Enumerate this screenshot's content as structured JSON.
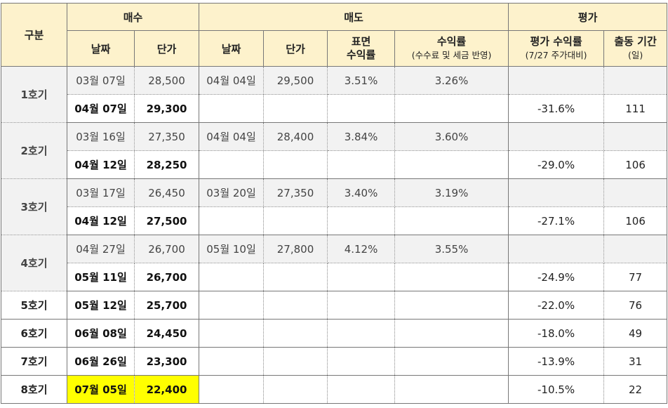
{
  "header": {
    "gubun": "구분",
    "buy": "매수",
    "sell": "매도",
    "eval": "평가",
    "buy_date": "날짜",
    "buy_price": "단가",
    "sell_date": "날짜",
    "sell_price": "단가",
    "surface_line1": "표면",
    "surface_line2": "수익률",
    "return_line1": "수익률",
    "return_line2": "(수수료 및 세금 반영)",
    "eval_return_line1": "평가 수익률",
    "eval_return_line2": "(7/27 주가대비)",
    "days_line1": "출동 기간",
    "days_line2": "(일)"
  },
  "groups": [
    {
      "label": "1호기",
      "rows": [
        {
          "buy_date": "03월 07일",
          "buy_price": "28,500",
          "sell_date": "04월 04일",
          "sell_price": "29,500",
          "surface": "3.51%",
          "net": "3.26%",
          "eval": "",
          "days": ""
        },
        {
          "buy_date": "04월 07일",
          "buy_price": "29,300",
          "sell_date": "",
          "sell_price": "",
          "surface": "",
          "net": "",
          "eval": "-31.6%",
          "days": "111"
        }
      ]
    },
    {
      "label": "2호기",
      "rows": [
        {
          "buy_date": "03월 16일",
          "buy_price": "27,350",
          "sell_date": "04월 04일",
          "sell_price": "28,400",
          "surface": "3.84%",
          "net": "3.60%",
          "eval": "",
          "days": ""
        },
        {
          "buy_date": "04월 12일",
          "buy_price": "28,250",
          "sell_date": "",
          "sell_price": "",
          "surface": "",
          "net": "",
          "eval": "-29.0%",
          "days": "106"
        }
      ]
    },
    {
      "label": "3호기",
      "rows": [
        {
          "buy_date": "03월 17일",
          "buy_price": "26,450",
          "sell_date": "03월 20일",
          "sell_price": "27,350",
          "surface": "3.40%",
          "net": "3.19%",
          "eval": "",
          "days": ""
        },
        {
          "buy_date": "04월 12일",
          "buy_price": "27,500",
          "sell_date": "",
          "sell_price": "",
          "surface": "",
          "net": "",
          "eval": "-27.1%",
          "days": "106"
        }
      ]
    },
    {
      "label": "4호기",
      "rows": [
        {
          "buy_date": "04월 27일",
          "buy_price": "26,700",
          "sell_date": "05월 10일",
          "sell_price": "27,800",
          "surface": "4.12%",
          "net": "3.55%",
          "eval": "",
          "days": ""
        },
        {
          "buy_date": "05월 11일",
          "buy_price": "26,700",
          "sell_date": "",
          "sell_price": "",
          "surface": "",
          "net": "",
          "eval": "-24.9%",
          "days": "77"
        }
      ]
    },
    {
      "label": "5호기",
      "rows": [
        {
          "buy_date": "05월 12일",
          "buy_price": "25,700",
          "sell_date": "",
          "sell_price": "",
          "surface": "",
          "net": "",
          "eval": "-22.0%",
          "days": "76"
        }
      ]
    },
    {
      "label": "6호기",
      "rows": [
        {
          "buy_date": "06월 08일",
          "buy_price": "24,450",
          "sell_date": "",
          "sell_price": "",
          "surface": "",
          "net": "",
          "eval": "-18.0%",
          "days": "49"
        }
      ]
    },
    {
      "label": "7호기",
      "rows": [
        {
          "buy_date": "06월 26일",
          "buy_price": "23,300",
          "sell_date": "",
          "sell_price": "",
          "surface": "",
          "net": "",
          "eval": "-13.9%",
          "days": "31"
        }
      ]
    },
    {
      "label": "8호기",
      "highlight": true,
      "rows": [
        {
          "buy_date": "07월 05일",
          "buy_price": "22,400",
          "sell_date": "",
          "sell_price": "",
          "surface": "",
          "net": "",
          "eval": "-10.5%",
          "days": "22"
        }
      ]
    }
  ],
  "colors": {
    "header_bg": "#fdf2cc",
    "sold_row_bg": "#f2f2f2",
    "highlight": "#ffff00"
  }
}
